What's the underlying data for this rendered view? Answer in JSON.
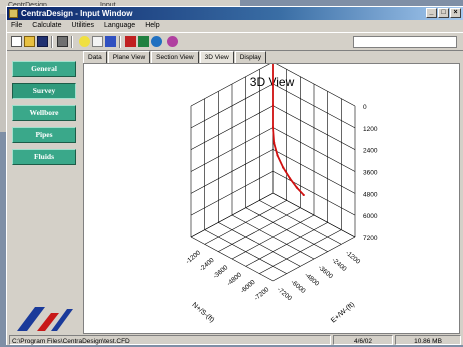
{
  "background_window": {
    "tab_label": "CentrDesign...",
    "field_value": "Input"
  },
  "window": {
    "title": "CentraDesign - Input Window",
    "controls": {
      "minimize": "_",
      "maximize": "□",
      "close": "×"
    }
  },
  "menu": [
    "File",
    "Calculate",
    "Utilities",
    "Language",
    "Help"
  ],
  "toolbar": {
    "icons": [
      "new-file-icon",
      "open-folder-icon",
      "save-icon",
      "print-icon",
      "light-bulb-icon",
      "help-pointer-icon",
      "settings-icon",
      "chart-icon",
      "table-icon",
      "globe-icon",
      "palette-icon"
    ],
    "combo_value": ""
  },
  "sidebar": {
    "buttons": [
      "General",
      "Survey",
      "Wellbore",
      "Pipes",
      "Fluids"
    ],
    "active_index": 1
  },
  "tabs": {
    "items": [
      "Data",
      "Plane View",
      "Section View",
      "3D View",
      "Display"
    ],
    "active_index": 3
  },
  "chart_data": {
    "type": "line",
    "title": "3D View",
    "z_axis": {
      "ticks": [
        "0",
        "1200",
        "2400",
        "3600",
        "4800",
        "6000",
        "7200"
      ]
    },
    "y_axis": {
      "label": "N+/S-(ft)",
      "ticks": [
        "-1200",
        "-2400",
        "-3600",
        "-4800",
        "-6000",
        "-7200"
      ]
    },
    "x_axis": {
      "label": "E+/W-(ft)",
      "ticks": [
        "-1200",
        "-2400",
        "-3600",
        "-4800",
        "-6000",
        "-7200"
      ]
    },
    "series": [
      {
        "color": "#d01010",
        "values": [
          [
            0,
            0,
            0
          ],
          [
            0,
            0,
            1200
          ],
          [
            0,
            0,
            2400
          ],
          [
            0,
            0,
            3600
          ],
          [
            0,
            -100,
            4400
          ],
          [
            0,
            -400,
            5000
          ],
          [
            0,
            -900,
            5500
          ],
          [
            0,
            -1500,
            5900
          ],
          [
            0,
            -2100,
            6200
          ],
          [
            0,
            -2700,
            6400
          ]
        ]
      }
    ],
    "grid": true,
    "cube_ranges": {
      "x": [
        -7200,
        0
      ],
      "y": [
        -7200,
        0
      ],
      "z": [
        0,
        7200
      ]
    }
  },
  "statusbar": {
    "path": "C:\\Program Files\\CentraDesign\\test.CFD",
    "date": "4/6/02",
    "memory": "10.86 MB"
  }
}
